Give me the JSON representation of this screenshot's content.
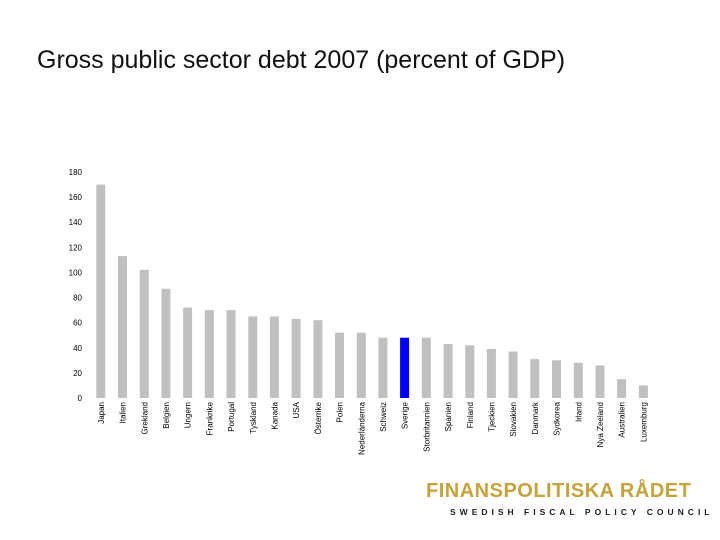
{
  "slide": {
    "title": "Gross public sector debt 2007 (percent of GDP)"
  },
  "logo": {
    "name": "FINANSPOLITISKA RÅDET",
    "subtitle": "SWEDISH FISCAL POLICY COUNCIL"
  },
  "colors": {
    "bar": "#c0c0c0",
    "highlight": "#0000ff",
    "text": "#000000",
    "logo": "#c8a23a"
  },
  "chart_data": {
    "type": "bar",
    "title": "Gross public sector debt 2007 (percent of GDP)",
    "xlabel": "",
    "ylabel": "",
    "ylim": [
      0,
      180
    ],
    "yticks": [
      0,
      20,
      40,
      60,
      80,
      100,
      120,
      140,
      160,
      180
    ],
    "grid": false,
    "highlight": "Sverige",
    "categories": [
      "Japan",
      "Italien",
      "Grekland",
      "Belgien",
      "Ungern",
      "Frankrike",
      "Portugal",
      "Tyskland",
      "Kanada",
      "USA",
      "Österrike",
      "Polen",
      "Nederländerna",
      "Schweiz",
      "Sverige",
      "Storbritannien",
      "Spanien",
      "Finland",
      "Tjeckien",
      "Slovakien",
      "Danmark",
      "Sydkorea",
      "Irland",
      "Nya Zeeland",
      "Australien",
      "Luxemburg"
    ],
    "values": [
      170,
      113,
      102,
      87,
      72,
      70,
      70,
      65,
      65,
      63,
      62,
      52,
      52,
      48,
      48,
      48,
      43,
      42,
      39,
      37,
      31,
      30,
      28,
      26,
      15,
      10
    ]
  }
}
